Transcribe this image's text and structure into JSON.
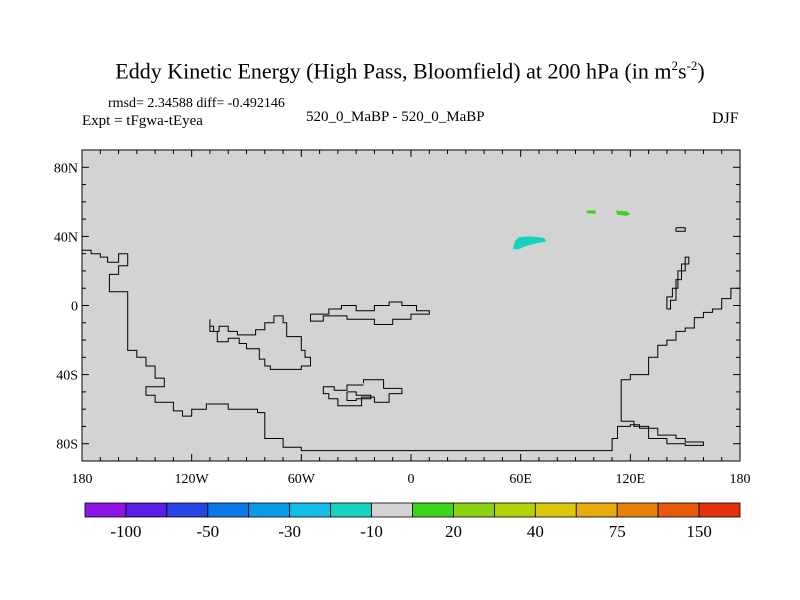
{
  "chart_data": {
    "type": "heatmap",
    "title": "Eddy Kinetic Energy (High Pass, Bloomfield) at 200 hPa (in m",
    "title_unit_sup1": "2",
    "title_unit_mid": "s",
    "title_unit_sup2": "-2",
    "title_close": ")",
    "stats_label": "rmsd= 2.34588 diff= -0.492146",
    "left_label": "Expt = tFgwa-tEyea",
    "center_label": "520_0_MaBP - 520_0_MaBP",
    "right_label": "DJF",
    "xlim": [
      -180,
      180
    ],
    "ylim": [
      -90,
      90
    ],
    "x_ticks": [
      {
        "value": -180,
        "label": "180"
      },
      {
        "value": -120,
        "label": "120W"
      },
      {
        "value": -60,
        "label": "60W"
      },
      {
        "value": 0,
        "label": "0"
      },
      {
        "value": 60,
        "label": "60E"
      },
      {
        "value": 120,
        "label": "120E"
      },
      {
        "value": 180,
        "label": "180"
      }
    ],
    "y_ticks": [
      {
        "value": 80,
        "label": "80N"
      },
      {
        "value": 40,
        "label": "40N"
      },
      {
        "value": 0,
        "label": "0"
      },
      {
        "value": -40,
        "label": "40S"
      },
      {
        "value": -80,
        "label": "80S"
      }
    ],
    "background_color": "#d3d3d3",
    "colorbar": {
      "colors": [
        "#8c14e6",
        "#5a1ee6",
        "#2846e6",
        "#0a78e6",
        "#0a9be6",
        "#14bee6",
        "#14d2be",
        "#d3d3d3",
        "#3cd21e",
        "#8cd214",
        "#b4d20a",
        "#dcc80a",
        "#e6aa0a",
        "#e6820a",
        "#e65a0a",
        "#e6320a"
      ],
      "labels": [
        {
          "boundary": 1,
          "text": "-100"
        },
        {
          "boundary": 3,
          "text": "-50"
        },
        {
          "boundary": 5,
          "text": "-30"
        },
        {
          "boundary": 7,
          "text": "-10"
        },
        {
          "boundary": 9,
          "text": "20"
        },
        {
          "boundary": 11,
          "text": "40"
        },
        {
          "boundary": 13,
          "text": "75"
        },
        {
          "boundary": 15,
          "text": "150"
        }
      ]
    },
    "patches": [
      {
        "name": "eurasia-patch",
        "color": "#14d2be",
        "points": [
          [
            56,
            34
          ],
          [
            57,
            37.5
          ],
          [
            59,
            39.5
          ],
          [
            64,
            40
          ],
          [
            70,
            39.5
          ],
          [
            73,
            39
          ],
          [
            74,
            37
          ],
          [
            69,
            36
          ],
          [
            63,
            34.5
          ],
          [
            59,
            32.5
          ],
          [
            56,
            32.5
          ]
        ]
      },
      {
        "name": "japan-patch-west",
        "color": "#3cd21e",
        "points": [
          [
            96,
            55
          ],
          [
            101,
            55
          ],
          [
            101,
            53
          ],
          [
            96,
            53.5
          ]
        ]
      },
      {
        "name": "japan-patch-east",
        "color": "#3cd21e",
        "points": [
          [
            112,
            55
          ],
          [
            118,
            54.5
          ],
          [
            120,
            53
          ],
          [
            118,
            52
          ],
          [
            113,
            52.5
          ]
        ]
      }
    ],
    "coastlines": [
      {
        "name": "americas-coast",
        "points": [
          [
            -180,
            32
          ],
          [
            -175,
            32
          ],
          [
            -175,
            30
          ],
          [
            -170,
            30
          ],
          [
            -170,
            28
          ],
          [
            -166,
            28
          ],
          [
            -166,
            25
          ],
          [
            -160,
            25
          ],
          [
            -160,
            30
          ],
          [
            -155,
            30
          ],
          [
            -155,
            23
          ],
          [
            -160,
            23
          ],
          [
            -160,
            18
          ],
          [
            -165,
            18
          ],
          [
            -165,
            8
          ],
          [
            -155,
            8
          ],
          [
            -155,
            -26
          ],
          [
            -150,
            -26
          ],
          [
            -150,
            -30
          ],
          [
            -145,
            -30
          ],
          [
            -145,
            -35
          ],
          [
            -140,
            -35
          ],
          [
            -140,
            -42
          ],
          [
            -135,
            -42
          ],
          [
            -135,
            -47
          ],
          [
            -145,
            -47
          ],
          [
            -145,
            -52
          ],
          [
            -140,
            -52
          ],
          [
            -140,
            -56
          ],
          [
            -135,
            -56
          ],
          [
            -130,
            -56
          ],
          [
            -130,
            -61
          ],
          [
            -125,
            -61
          ],
          [
            -125,
            -64
          ],
          [
            -120,
            -64
          ],
          [
            -120,
            -60
          ],
          [
            -112,
            -60
          ],
          [
            -112,
            -57
          ],
          [
            -100,
            -57
          ],
          [
            -100,
            -60
          ],
          [
            -84,
            -60
          ],
          [
            -84,
            -62
          ],
          [
            -80,
            -62
          ],
          [
            -80,
            -77
          ],
          [
            -70,
            -77
          ],
          [
            -70,
            -82
          ],
          [
            -60,
            -82
          ],
          [
            -60,
            -84
          ],
          [
            -50,
            -84
          ],
          [
            -40,
            -84
          ],
          [
            110,
            -84
          ],
          [
            110,
            -77
          ],
          [
            113,
            -77
          ],
          [
            113,
            -70
          ],
          [
            120,
            -70
          ],
          [
            120,
            -69
          ],
          [
            125,
            -69
          ],
          [
            125,
            -71
          ],
          [
            135,
            -71
          ],
          [
            135,
            -75
          ],
          [
            145,
            -75
          ],
          [
            145,
            -77
          ],
          [
            150,
            -77
          ],
          [
            150,
            -79
          ],
          [
            160,
            -79
          ],
          [
            160,
            -81
          ],
          [
            150,
            -81
          ],
          [
            150,
            -80
          ],
          [
            140,
            -80
          ],
          [
            140,
            -77
          ],
          [
            130,
            -77
          ],
          [
            130,
            -70
          ],
          [
            122,
            -70
          ],
          [
            122,
            -67
          ],
          [
            115,
            -67
          ],
          [
            115,
            -43
          ],
          [
            120,
            -43
          ],
          [
            120,
            -40
          ],
          [
            130,
            -40
          ],
          [
            130,
            -30
          ],
          [
            135,
            -30
          ],
          [
            135,
            -23
          ],
          [
            140,
            -23
          ],
          [
            140,
            -20
          ],
          [
            145,
            -20
          ],
          [
            145,
            -15
          ],
          [
            150,
            -15
          ],
          [
            150,
            -13
          ],
          [
            155,
            -13
          ],
          [
            155,
            -7
          ],
          [
            160,
            -7
          ],
          [
            160,
            -4
          ],
          [
            165,
            -4
          ],
          [
            165,
            -2
          ],
          [
            170,
            -2
          ],
          [
            170,
            4
          ],
          [
            175,
            4
          ],
          [
            175,
            10
          ],
          [
            180,
            10
          ]
        ]
      },
      {
        "name": "africa-coast",
        "points": [
          [
            -55,
            -5
          ],
          [
            -45,
            -5
          ],
          [
            -45,
            -2
          ],
          [
            -38,
            -2
          ],
          [
            -38,
            0
          ],
          [
            -30,
            0
          ],
          [
            -30,
            -3
          ],
          [
            -20,
            -3
          ],
          [
            -20,
            0
          ],
          [
            -12,
            0
          ],
          [
            -12,
            2
          ],
          [
            -5,
            2
          ],
          [
            -5,
            0
          ],
          [
            3,
            0
          ],
          [
            3,
            -3
          ],
          [
            10,
            -3
          ],
          [
            10,
            -5
          ],
          [
            0,
            -5
          ],
          [
            0,
            -8
          ],
          [
            -10,
            -8
          ],
          [
            -10,
            -11
          ],
          [
            -20,
            -11
          ],
          [
            -20,
            -8
          ],
          [
            -35,
            -8
          ],
          [
            -35,
            -6
          ],
          [
            -48,
            -6
          ],
          [
            -48,
            -9
          ],
          [
            -55,
            -9
          ],
          [
            -55,
            -5
          ]
        ]
      },
      {
        "name": "south-america-coast",
        "points": [
          [
            -110,
            -8
          ],
          [
            -110,
            -12
          ],
          [
            -108,
            -12
          ],
          [
            -108,
            -15
          ],
          [
            -105,
            -15
          ],
          [
            -105,
            -12
          ],
          [
            -100,
            -12
          ],
          [
            -100,
            -15
          ],
          [
            -95,
            -15
          ],
          [
            -95,
            -17
          ],
          [
            -85,
            -17
          ],
          [
            -85,
            -14
          ],
          [
            -80,
            -14
          ],
          [
            -80,
            -10
          ],
          [
            -75,
            -10
          ],
          [
            -75,
            -6
          ],
          [
            -70,
            -6
          ],
          [
            -70,
            -10
          ],
          [
            -68,
            -10
          ],
          [
            -68,
            -18
          ],
          [
            -60,
            -18
          ],
          [
            -60,
            -26
          ],
          [
            -58,
            -26
          ],
          [
            -58,
            -30
          ],
          [
            -55,
            -30
          ],
          [
            -55,
            -35
          ],
          [
            -60,
            -35
          ],
          [
            -60,
            -37
          ],
          [
            -77,
            -37
          ],
          [
            -77,
            -35
          ],
          [
            -80,
            -35
          ],
          [
            -80,
            -31
          ],
          [
            -83,
            -31
          ],
          [
            -83,
            -25
          ],
          [
            -90,
            -25
          ],
          [
            -90,
            -22
          ],
          [
            -94,
            -22
          ],
          [
            -94,
            -19
          ],
          [
            -100,
            -19
          ],
          [
            -100,
            -21
          ],
          [
            -106,
            -21
          ],
          [
            -106,
            -15
          ],
          [
            -110,
            -15
          ],
          [
            -110,
            -8
          ]
        ]
      },
      {
        "name": "island-cluster",
        "points": [
          [
            -26,
            -45
          ],
          [
            -26,
            -43
          ],
          [
            -15,
            -43
          ],
          [
            -15,
            -48
          ],
          [
            -5,
            -48
          ],
          [
            -5,
            -51
          ],
          [
            -12,
            -51
          ],
          [
            -12,
            -56
          ],
          [
            -20,
            -56
          ],
          [
            -20,
            -53
          ],
          [
            -27,
            -53
          ],
          [
            -27,
            -58
          ],
          [
            -40,
            -58
          ],
          [
            -40,
            -54
          ],
          [
            -45,
            -54
          ],
          [
            -45,
            -51
          ],
          [
            -48,
            -51
          ],
          [
            -48,
            -47
          ],
          [
            -42,
            -47
          ],
          [
            -42,
            -49
          ],
          [
            -35,
            -49
          ],
          [
            -35,
            -46
          ],
          [
            -26,
            -46
          ]
        ]
      },
      {
        "name": "inner-island",
        "points": [
          [
            -35,
            -50
          ],
          [
            -30,
            -50
          ],
          [
            -30,
            -52
          ],
          [
            -22,
            -52
          ],
          [
            -22,
            -54
          ],
          [
            -30,
            -54
          ],
          [
            -30,
            -55
          ],
          [
            -35,
            -55
          ],
          [
            -35,
            -50
          ]
        ]
      },
      {
        "name": "east-asia-coast",
        "points": [
          [
            140,
            -2
          ],
          [
            142,
            -2
          ],
          [
            142,
            3
          ],
          [
            145,
            3
          ],
          [
            145,
            15
          ],
          [
            148,
            15
          ],
          [
            148,
            24
          ],
          [
            152,
            24
          ],
          [
            152,
            28
          ],
          [
            150,
            28
          ],
          [
            150,
            20
          ],
          [
            146,
            20
          ],
          [
            146,
            10
          ],
          [
            143,
            10
          ],
          [
            143,
            5
          ],
          [
            140,
            5
          ],
          [
            140,
            -2
          ]
        ]
      },
      {
        "name": "small-island",
        "points": [
          [
            145,
            45
          ],
          [
            150,
            45
          ],
          [
            150,
            43
          ],
          [
            145,
            43
          ],
          [
            145,
            45
          ]
        ]
      }
    ]
  }
}
